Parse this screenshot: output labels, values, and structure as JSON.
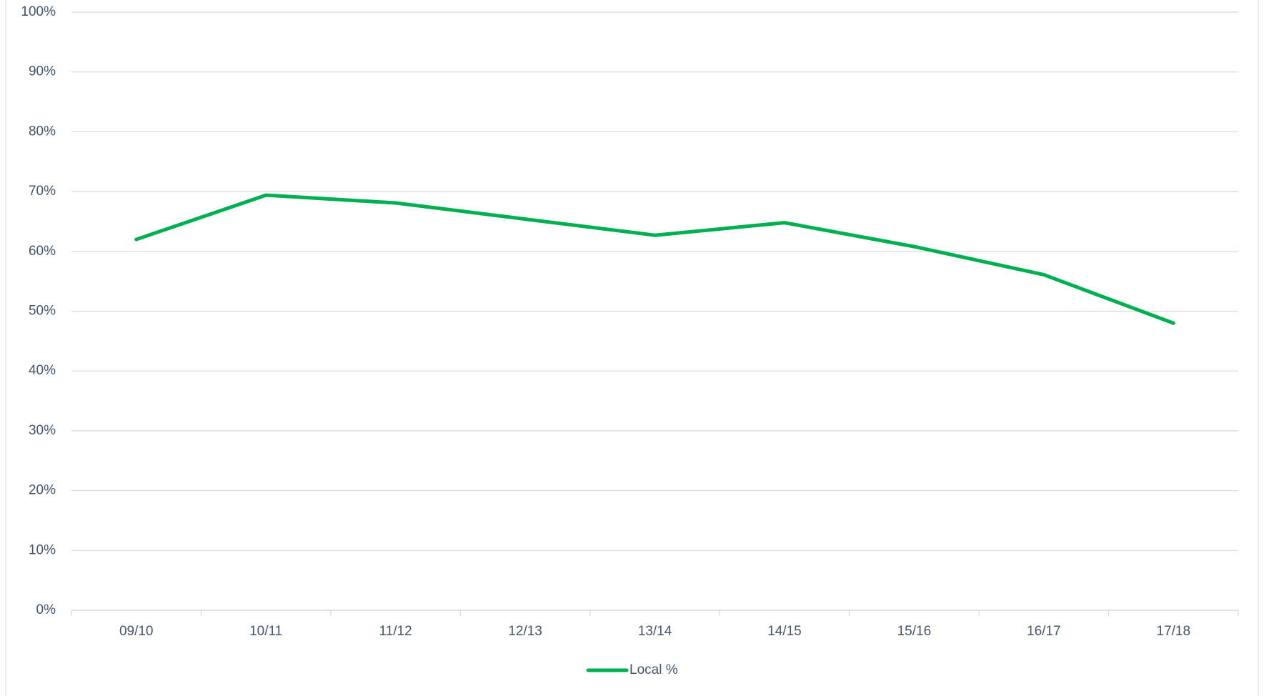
{
  "chart_data": {
    "type": "line",
    "categories": [
      "09/10",
      "10/11",
      "11/12",
      "12/13",
      "13/14",
      "14/15",
      "15/16",
      "16/17",
      "17/18"
    ],
    "series": [
      {
        "name": "Local %",
        "color": "#00b050",
        "values": [
          62.0,
          69.4,
          68.1,
          65.4,
          62.7,
          64.8,
          60.8,
          56.1,
          48.0
        ]
      }
    ],
    "ylim": [
      0,
      100
    ],
    "yticks": [
      {
        "value": 0,
        "label": "0%"
      },
      {
        "value": 10,
        "label": "10%"
      },
      {
        "value": 20,
        "label": "20%"
      },
      {
        "value": 30,
        "label": "30%"
      },
      {
        "value": 40,
        "label": "40%"
      },
      {
        "value": 50,
        "label": "50%"
      },
      {
        "value": 60,
        "label": "60%"
      },
      {
        "value": 70,
        "label": "70%"
      },
      {
        "value": 80,
        "label": "80%"
      },
      {
        "value": 90,
        "label": "90%"
      },
      {
        "value": 100,
        "label": "100%"
      }
    ],
    "grid": true,
    "legend": "bottom"
  }
}
